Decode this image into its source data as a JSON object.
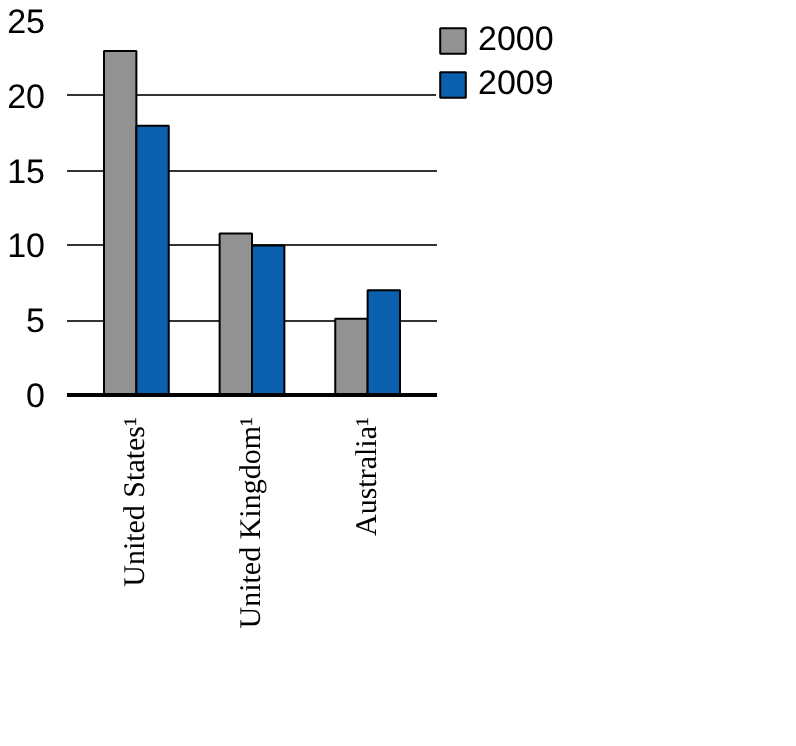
{
  "chart_data": {
    "type": "bar",
    "categories": [
      "United States¹",
      "United Kingdom¹",
      "Australia¹"
    ],
    "series": [
      {
        "name": "2000",
        "color": "#929292",
        "values": [
          23,
          10.8,
          5.1
        ]
      },
      {
        "name": "2009",
        "color": "#0a5fae",
        "values": [
          18,
          10,
          7
        ]
      }
    ],
    "ylim": [
      0,
      25
    ],
    "yticks": [
      0,
      5,
      10,
      15,
      20,
      25
    ],
    "grid": "y",
    "legend": "top right"
  }
}
